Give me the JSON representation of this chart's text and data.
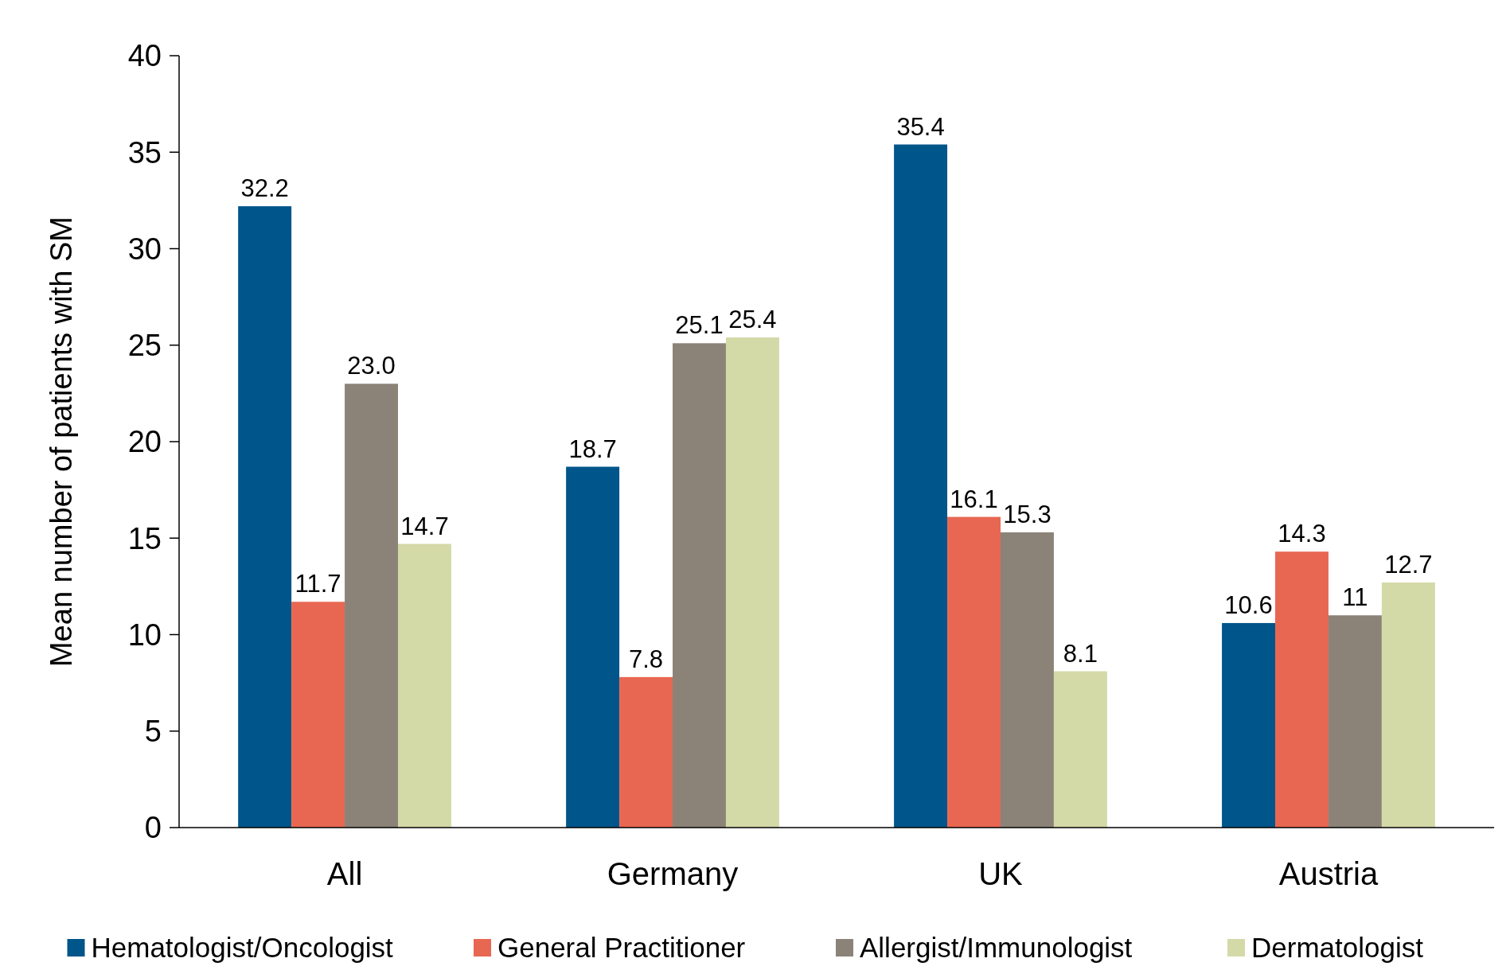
{
  "chart_data": {
    "type": "bar",
    "ylabel": "Mean number of patients with SM",
    "categories": [
      "All",
      "Germany",
      "UK",
      "Austria"
    ],
    "series": [
      {
        "name": "Hematologist/Oncologist",
        "color": "#00558a",
        "values": [
          32.2,
          18.7,
          35.4,
          10.6
        ],
        "value_labels": [
          "32.2",
          "18.7",
          "35.4",
          "10.6"
        ]
      },
      {
        "name": "General Practitioner",
        "color": "#e86752",
        "values": [
          11.7,
          7.8,
          16.1,
          14.3
        ],
        "value_labels": [
          "11.7",
          "7.8",
          "16.1",
          "14.3"
        ]
      },
      {
        "name": "Allergist/Immunologist",
        "color": "#8c8378",
        "values": [
          23.0,
          25.1,
          15.3,
          11
        ],
        "value_labels": [
          "23.0",
          "25.1",
          "15.3",
          "11"
        ]
      },
      {
        "name": "Dermatologist",
        "color": "#d4d9a8",
        "values": [
          14.7,
          25.4,
          8.1,
          12.7
        ],
        "value_labels": [
          "14.7",
          "25.4",
          "8.1",
          "12.7"
        ]
      }
    ],
    "ylim": [
      0,
      40
    ],
    "yticks": [
      0,
      5,
      10,
      15,
      20,
      25,
      30,
      35,
      40
    ],
    "grid": false,
    "legend": "bottom"
  }
}
